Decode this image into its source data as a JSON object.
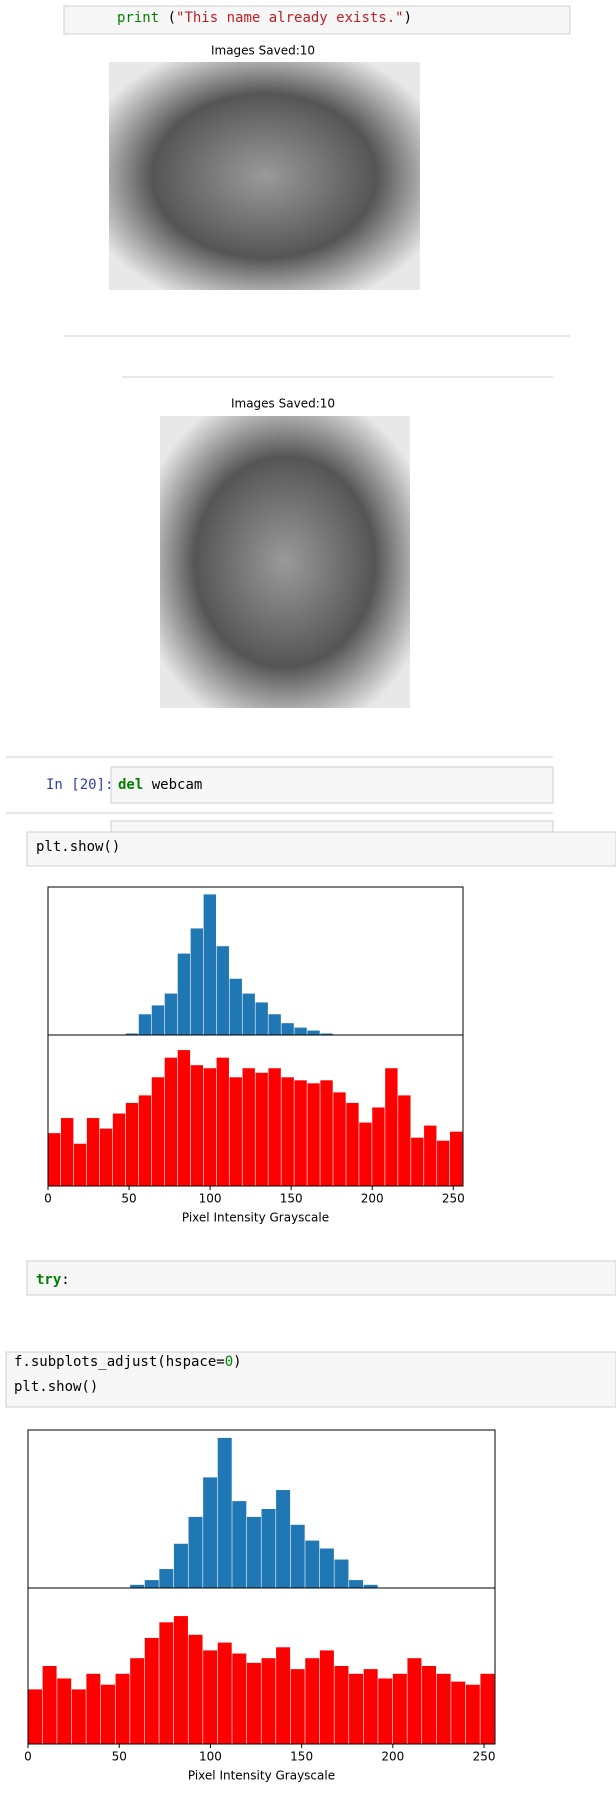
{
  "cells": [
    {
      "lines": [
        [
          "print",
          " (",
          "\"This name already exists.\"",
          ")"
        ]
      ]
    },
    {
      "prompt": "In [20]:",
      "lines": [
        [
          "del",
          " webcam"
        ]
      ]
    },
    {
      "lines": [
        [
          "plt.show()"
        ]
      ]
    },
    {
      "lines": [
        [
          "try",
          ":"
        ]
      ]
    },
    {
      "lines": [
        [
          "f.subplots_adjust(hspace=",
          "0",
          ")"
        ],
        [
          "plt.show()"
        ]
      ]
    }
  ],
  "outputs": [
    {
      "title": "Images Saved:10"
    },
    {
      "title": "Images Saved:10"
    }
  ],
  "chart_data": [
    {
      "type": "histogram",
      "xlabel": "Pixel Intensity Grayscale",
      "xlim": [
        0,
        256
      ],
      "xticks": [
        0,
        50,
        100,
        150,
        200,
        250
      ],
      "bins": [
        0,
        8,
        16,
        24,
        32,
        40,
        48,
        56,
        64,
        72,
        80,
        88,
        96,
        104,
        112,
        120,
        128,
        136,
        144,
        152,
        160,
        168,
        176,
        184,
        192,
        200,
        208,
        216,
        224,
        232,
        240,
        248,
        256
      ],
      "ylim": [
        0,
        100
      ],
      "series": [
        {
          "color": "#1f77b4",
          "values": [
            0,
            0,
            0,
            0,
            0,
            0,
            1,
            14,
            20,
            28,
            55,
            72,
            95,
            60,
            38,
            28,
            22,
            14,
            8,
            5,
            3,
            1,
            0,
            0,
            0,
            0,
            0,
            0,
            0,
            0,
            0,
            0
          ]
        },
        {
          "color": "#ff0000",
          "values": [
            35,
            45,
            28,
            45,
            38,
            48,
            55,
            60,
            72,
            85,
            90,
            80,
            78,
            85,
            72,
            78,
            75,
            78,
            72,
            70,
            68,
            70,
            62,
            55,
            42,
            52,
            78,
            60,
            32,
            40,
            30,
            36
          ]
        }
      ]
    },
    {
      "type": "histogram",
      "xlabel": "Pixel Intensity Grayscale",
      "xlim": [
        0,
        256
      ],
      "xticks": [
        0,
        50,
        100,
        150,
        200,
        250
      ],
      "bins": [
        0,
        8,
        16,
        24,
        32,
        40,
        48,
        56,
        64,
        72,
        80,
        88,
        96,
        104,
        112,
        120,
        128,
        136,
        144,
        152,
        160,
        168,
        176,
        184,
        192,
        200,
        208,
        216,
        224,
        232,
        240,
        248,
        256
      ],
      "ylim": [
        0,
        100
      ],
      "series": [
        {
          "color": "#1f77b4",
          "values": [
            0,
            0,
            0,
            0,
            0,
            0,
            0,
            2,
            5,
            12,
            28,
            45,
            70,
            95,
            55,
            45,
            50,
            62,
            40,
            30,
            25,
            18,
            5,
            2,
            0,
            0,
            0,
            0,
            0,
            0,
            0,
            0
          ]
        },
        {
          "color": "#ff0000",
          "values": [
            35,
            50,
            42,
            35,
            45,
            38,
            45,
            55,
            68,
            78,
            82,
            70,
            60,
            65,
            58,
            52,
            55,
            62,
            48,
            55,
            60,
            50,
            45,
            48,
            42,
            45,
            55,
            50,
            45,
            40,
            38,
            45
          ]
        }
      ]
    }
  ]
}
